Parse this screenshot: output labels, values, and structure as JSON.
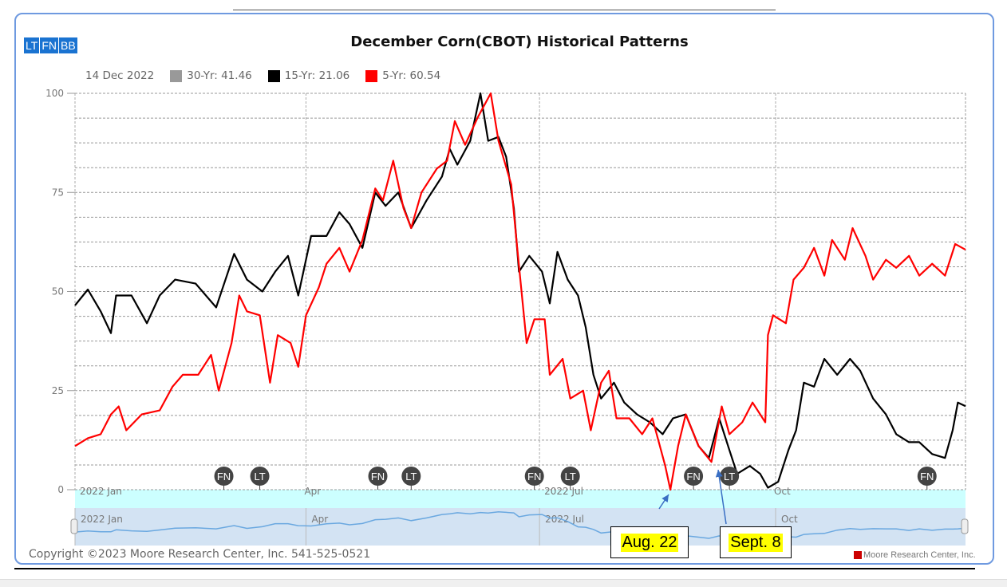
{
  "toolbar": {
    "buttons": [
      "LT",
      "FN",
      "BB"
    ]
  },
  "legend": {
    "date": "14 Dec 2022",
    "items": [
      {
        "label": "30-Yr: 41.46",
        "color": "#999999"
      },
      {
        "label": "15-Yr: 21.06",
        "color": "#000000"
      },
      {
        "label": "5-Yr: 60.54",
        "color": "#ff0000"
      }
    ]
  },
  "footer": {
    "copyright": "Copyright ©2023 Moore Research Center, Inc. 541-525-0521",
    "brand": "Moore Research Center, Inc."
  },
  "annotations": [
    {
      "label": "Aug. 22",
      "date": "2022-08-22"
    },
    {
      "label": "Sept. 8",
      "date": "2022-09-08"
    }
  ],
  "chart_data": {
    "type": "line",
    "title": "December Corn(CBOT) Historical Patterns",
    "ylim": [
      0,
      100
    ],
    "yticks": [
      "0",
      "25",
      "50",
      "75",
      "100"
    ],
    "xlim": [
      "2022-01-01",
      "2022-12-14"
    ],
    "xticks": [
      {
        "label": "2022 Jan",
        "date": "2022-01-01"
      },
      {
        "label": "Apr",
        "date": "2022-04-01"
      },
      {
        "label": "2022 Jul",
        "date": "2022-07-01"
      },
      {
        "label": "Oct",
        "date": "2022-10-01"
      }
    ],
    "grid": true,
    "legend_position": "top-left",
    "markers": [
      {
        "label": "FN",
        "date": "2022-02-28"
      },
      {
        "label": "LT",
        "date": "2022-03-14"
      },
      {
        "label": "FN",
        "date": "2022-04-29"
      },
      {
        "label": "LT",
        "date": "2022-05-12"
      },
      {
        "label": "FN",
        "date": "2022-06-29"
      },
      {
        "label": "LT",
        "date": "2022-07-13"
      },
      {
        "label": "FN",
        "date": "2022-08-30"
      },
      {
        "label": "LT",
        "date": "2022-09-13"
      },
      {
        "label": "FN",
        "date": "2022-11-29"
      }
    ],
    "series": [
      {
        "name": "15-Yr",
        "color": "#000000",
        "points": [
          [
            "2022-01-01",
            46.5
          ],
          [
            "2022-01-06",
            50.5
          ],
          [
            "2022-01-11",
            45
          ],
          [
            "2022-01-15",
            39.5
          ],
          [
            "2022-01-17",
            49
          ],
          [
            "2022-01-23",
            49
          ],
          [
            "2022-01-29",
            42
          ],
          [
            "2022-02-03",
            49
          ],
          [
            "2022-02-09",
            53
          ],
          [
            "2022-02-17",
            52
          ],
          [
            "2022-02-25",
            46
          ],
          [
            "2022-03-04",
            59.5
          ],
          [
            "2022-03-09",
            53
          ],
          [
            "2022-03-15",
            50
          ],
          [
            "2022-03-20",
            55
          ],
          [
            "2022-03-25",
            59
          ],
          [
            "2022-03-29",
            49
          ],
          [
            "2022-04-03",
            64
          ],
          [
            "2022-04-09",
            64
          ],
          [
            "2022-04-14",
            70
          ],
          [
            "2022-04-18",
            67
          ],
          [
            "2022-04-23",
            61
          ],
          [
            "2022-04-28",
            75
          ],
          [
            "2022-05-02",
            71.6
          ],
          [
            "2022-05-07",
            75
          ],
          [
            "2022-05-12",
            66
          ],
          [
            "2022-05-18",
            73
          ],
          [
            "2022-05-24",
            79
          ],
          [
            "2022-05-27",
            86
          ],
          [
            "2022-05-30",
            82
          ],
          [
            "2022-06-04",
            88
          ],
          [
            "2022-06-08",
            100
          ],
          [
            "2022-06-11",
            88
          ],
          [
            "2022-06-15",
            89
          ],
          [
            "2022-06-18",
            84
          ],
          [
            "2022-06-21",
            71
          ],
          [
            "2022-06-23",
            55
          ],
          [
            "2022-06-27",
            59
          ],
          [
            "2022-07-02",
            55
          ],
          [
            "2022-07-05",
            47
          ],
          [
            "2022-07-08",
            60
          ],
          [
            "2022-07-12",
            53
          ],
          [
            "2022-07-16",
            49
          ],
          [
            "2022-07-19",
            41
          ],
          [
            "2022-07-22",
            29
          ],
          [
            "2022-07-25",
            23
          ],
          [
            "2022-07-30",
            27
          ],
          [
            "2022-08-03",
            22
          ],
          [
            "2022-08-08",
            19
          ],
          [
            "2022-08-13",
            17
          ],
          [
            "2022-08-18",
            14
          ],
          [
            "2022-08-22",
            18
          ],
          [
            "2022-08-27",
            19
          ],
          [
            "2022-09-01",
            11
          ],
          [
            "2022-09-05",
            8
          ],
          [
            "2022-09-09",
            18
          ],
          [
            "2022-09-13",
            10
          ],
          [
            "2022-09-16",
            4
          ],
          [
            "2022-09-21",
            6
          ],
          [
            "2022-09-25",
            4
          ],
          [
            "2022-09-28",
            0.5
          ],
          [
            "2022-10-02",
            2
          ],
          [
            "2022-10-06",
            10
          ],
          [
            "2022-10-09",
            15
          ],
          [
            "2022-10-12",
            27
          ],
          [
            "2022-10-16",
            26
          ],
          [
            "2022-10-20",
            33
          ],
          [
            "2022-10-25",
            29
          ],
          [
            "2022-10-30",
            33
          ],
          [
            "2022-11-03",
            30
          ],
          [
            "2022-11-08",
            23
          ],
          [
            "2022-11-13",
            19
          ],
          [
            "2022-11-17",
            14
          ],
          [
            "2022-11-22",
            12
          ],
          [
            "2022-11-26",
            12
          ],
          [
            "2022-12-01",
            9
          ],
          [
            "2022-12-06",
            8
          ],
          [
            "2022-12-09",
            15
          ],
          [
            "2022-12-11",
            22
          ],
          [
            "2022-12-14",
            21.06
          ]
        ]
      },
      {
        "name": "5-Yr",
        "color": "#ff0000",
        "points": [
          [
            "2022-01-01",
            11
          ],
          [
            "2022-01-06",
            13
          ],
          [
            "2022-01-11",
            14
          ],
          [
            "2022-01-15",
            19
          ],
          [
            "2022-01-18",
            21
          ],
          [
            "2022-01-21",
            15
          ],
          [
            "2022-01-27",
            19
          ],
          [
            "2022-02-03",
            20
          ],
          [
            "2022-02-08",
            26
          ],
          [
            "2022-02-12",
            29
          ],
          [
            "2022-02-18",
            29
          ],
          [
            "2022-02-23",
            34
          ],
          [
            "2022-02-26",
            25
          ],
          [
            "2022-03-03",
            37
          ],
          [
            "2022-03-06",
            49
          ],
          [
            "2022-03-09",
            45
          ],
          [
            "2022-03-14",
            44
          ],
          [
            "2022-03-18",
            27
          ],
          [
            "2022-03-21",
            39
          ],
          [
            "2022-03-26",
            37
          ],
          [
            "2022-03-29",
            31
          ],
          [
            "2022-04-01",
            44
          ],
          [
            "2022-04-06",
            51
          ],
          [
            "2022-04-09",
            57
          ],
          [
            "2022-04-14",
            61
          ],
          [
            "2022-04-18",
            55
          ],
          [
            "2022-04-23",
            63
          ],
          [
            "2022-04-28",
            76
          ],
          [
            "2022-05-01",
            73
          ],
          [
            "2022-05-05",
            83
          ],
          [
            "2022-05-09",
            71
          ],
          [
            "2022-05-12",
            66
          ],
          [
            "2022-05-16",
            75
          ],
          [
            "2022-05-22",
            81
          ],
          [
            "2022-05-26",
            83
          ],
          [
            "2022-05-29",
            93
          ],
          [
            "2022-06-02",
            87
          ],
          [
            "2022-06-07",
            94
          ],
          [
            "2022-06-12",
            100
          ],
          [
            "2022-06-15",
            88
          ],
          [
            "2022-06-20",
            77
          ],
          [
            "2022-06-22",
            63
          ],
          [
            "2022-06-26",
            37
          ],
          [
            "2022-06-29",
            43
          ],
          [
            "2022-07-03",
            43
          ],
          [
            "2022-07-05",
            29
          ],
          [
            "2022-07-10",
            33
          ],
          [
            "2022-07-13",
            23
          ],
          [
            "2022-07-18",
            25
          ],
          [
            "2022-07-21",
            15
          ],
          [
            "2022-07-25",
            27
          ],
          [
            "2022-07-28",
            30
          ],
          [
            "2022-07-31",
            18
          ],
          [
            "2022-08-05",
            18
          ],
          [
            "2022-08-10",
            14
          ],
          [
            "2022-08-14",
            18
          ],
          [
            "2022-08-19",
            6
          ],
          [
            "2022-08-21",
            0
          ],
          [
            "2022-08-24",
            11
          ],
          [
            "2022-08-27",
            19
          ],
          [
            "2022-09-01",
            11
          ],
          [
            "2022-09-06",
            7
          ],
          [
            "2022-09-10",
            21
          ],
          [
            "2022-09-13",
            14
          ],
          [
            "2022-09-18",
            17
          ],
          [
            "2022-09-22",
            22
          ],
          [
            "2022-09-27",
            17
          ],
          [
            "2022-09-28",
            39
          ],
          [
            "2022-09-30",
            44
          ],
          [
            "2022-10-05",
            42
          ],
          [
            "2022-10-08",
            53
          ],
          [
            "2022-10-12",
            56
          ],
          [
            "2022-10-16",
            61
          ],
          [
            "2022-10-20",
            54
          ],
          [
            "2022-10-23",
            63
          ],
          [
            "2022-10-28",
            58
          ],
          [
            "2022-10-31",
            66
          ],
          [
            "2022-11-05",
            59
          ],
          [
            "2022-11-08",
            53
          ],
          [
            "2022-11-13",
            58
          ],
          [
            "2022-11-17",
            56
          ],
          [
            "2022-11-22",
            59
          ],
          [
            "2022-11-26",
            54
          ],
          [
            "2022-12-01",
            57
          ],
          [
            "2022-12-06",
            54
          ],
          [
            "2022-12-10",
            62
          ],
          [
            "2022-12-14",
            60.54
          ]
        ]
      }
    ]
  }
}
